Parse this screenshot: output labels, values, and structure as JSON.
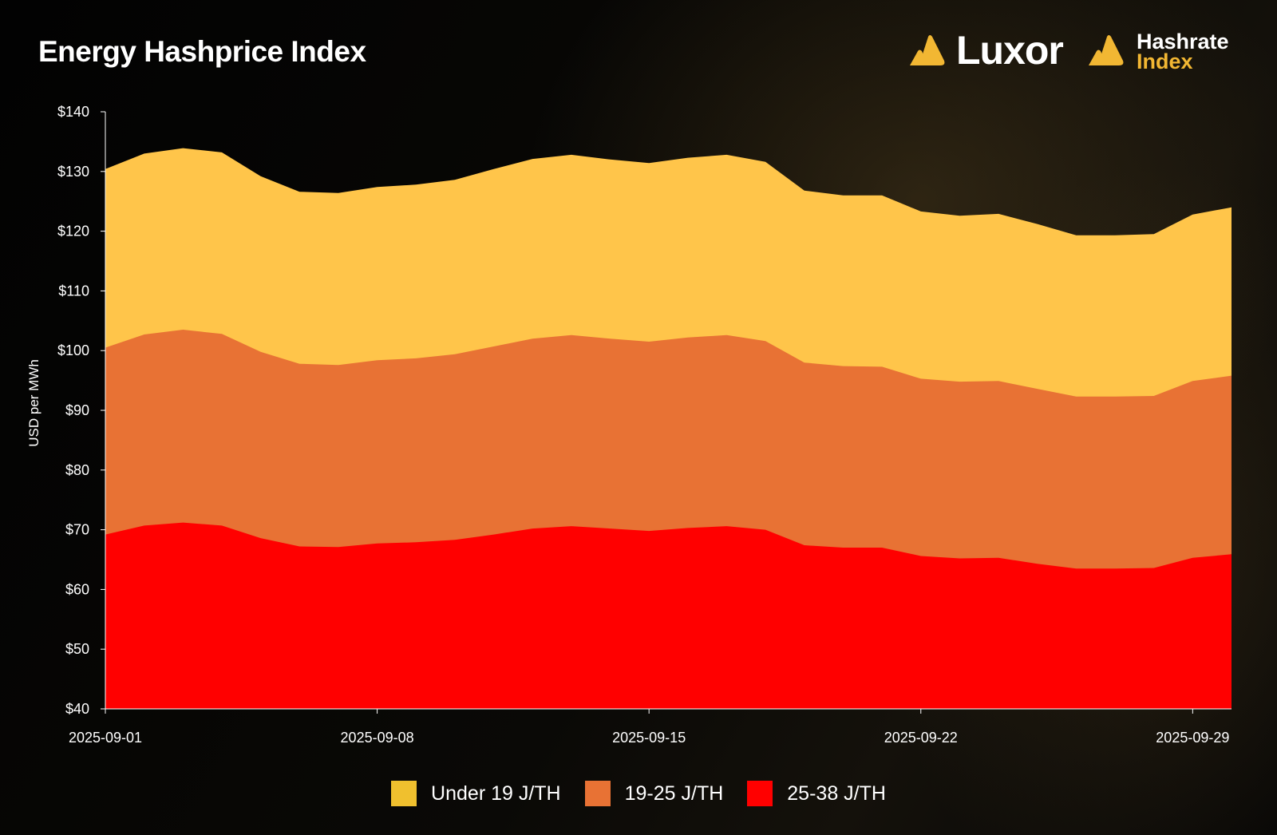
{
  "header": {
    "title": "Energy Hashprice Index",
    "brand_luxor": "Luxor",
    "brand_hri_line1": "Hashrate",
    "brand_hri_line2": "Index"
  },
  "colors": {
    "background": "#050505",
    "brand_yellow": "#f2b733",
    "under19": "#ffc54a",
    "19to25": "#e87234",
    "25to38": "#ff0000"
  },
  "chart_data": {
    "type": "area",
    "title": "Energy Hashprice Index",
    "xlabel": "",
    "ylabel": "USD per MWh",
    "ylim": [
      40,
      140
    ],
    "y_ticks": [
      "$40",
      "$50",
      "$60",
      "$70",
      "$80",
      "$90",
      "$100",
      "$110",
      "$120",
      "$130",
      "$140"
    ],
    "x_ticks": [
      "2025-09-01",
      "2025-09-08",
      "2025-09-15",
      "2025-09-22",
      "2025-09-29"
    ],
    "x": [
      "2025-09-01",
      "2025-09-02",
      "2025-09-03",
      "2025-09-04",
      "2025-09-05",
      "2025-09-06",
      "2025-09-07",
      "2025-09-08",
      "2025-09-09",
      "2025-09-10",
      "2025-09-11",
      "2025-09-12",
      "2025-09-13",
      "2025-09-14",
      "2025-09-15",
      "2025-09-16",
      "2025-09-17",
      "2025-09-18",
      "2025-09-19",
      "2025-09-20",
      "2025-09-21",
      "2025-09-22",
      "2025-09-23",
      "2025-09-24",
      "2025-09-25",
      "2025-09-26",
      "2025-09-27",
      "2025-09-28",
      "2025-09-29",
      "2025-09-30"
    ],
    "grid": false,
    "legend_position": "bottom-center",
    "series": [
      {
        "name": "Under 19 J/TH",
        "color": "#ffc54a",
        "values": [
          130.4,
          133.0,
          133.9,
          133.2,
          129.2,
          126.6,
          126.4,
          127.4,
          127.8,
          128.6,
          130.4,
          132.1,
          132.8,
          132.0,
          131.4,
          132.3,
          132.8,
          131.6,
          126.8,
          126.0,
          126.0,
          123.3,
          122.6,
          122.9,
          121.2,
          119.3,
          119.3,
          119.5,
          122.8,
          124.0
        ]
      },
      {
        "name": "19-25 J/TH",
        "color": "#e87234",
        "values": [
          100.5,
          102.7,
          103.5,
          102.8,
          99.8,
          97.8,
          97.6,
          98.4,
          98.7,
          99.4,
          100.7,
          102.0,
          102.6,
          102.0,
          101.5,
          102.2,
          102.6,
          101.6,
          98.0,
          97.4,
          97.3,
          95.3,
          94.8,
          94.9,
          93.6,
          92.3,
          92.3,
          92.4,
          94.9,
          95.8
        ]
      },
      {
        "name": "25-38 J/TH",
        "color": "#ff0000",
        "values": [
          69.2,
          70.7,
          71.2,
          70.7,
          68.6,
          67.2,
          67.1,
          67.7,
          67.9,
          68.3,
          69.2,
          70.2,
          70.6,
          70.2,
          69.8,
          70.3,
          70.6,
          70.0,
          67.4,
          67.0,
          67.0,
          65.6,
          65.2,
          65.3,
          64.3,
          63.5,
          63.5,
          63.6,
          65.3,
          65.9
        ]
      }
    ]
  }
}
